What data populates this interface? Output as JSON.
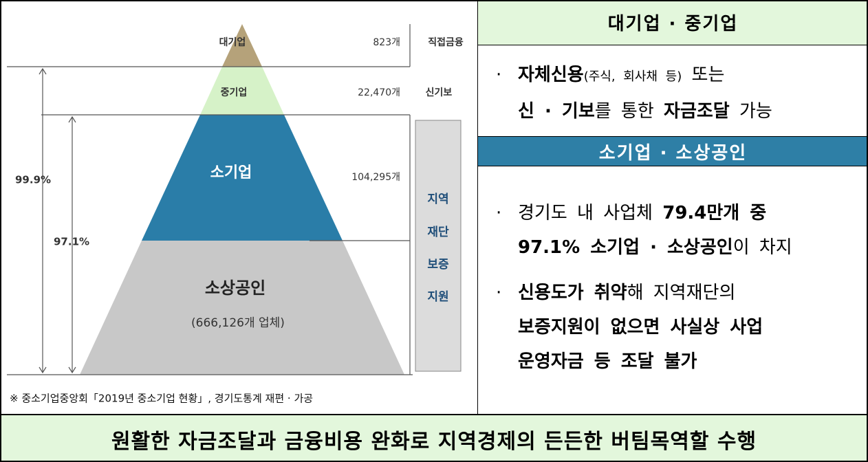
{
  "pyramid": {
    "levels": [
      {
        "label": "대기업",
        "count": "823개",
        "channel": "직접금융"
      },
      {
        "label": "중기업",
        "count": "22,470개",
        "channel": "신기보"
      },
      {
        "label": "소기업",
        "count": "104,295개"
      },
      {
        "label": "소상공인",
        "sublabel": "(666,126개 업체)"
      }
    ],
    "support": [
      "지역",
      "재단",
      "보증",
      "지원"
    ],
    "shares": [
      "99.9%",
      "97.1%"
    ],
    "source": "※ 중소기업중앙회「2019년 중소기업 현황」, 경기도통계 재편 · 가공"
  },
  "right": {
    "sections": [
      {
        "title": "대기업 · 중기업",
        "bullets": [
          {
            "marker": "·",
            "lines": [
              [
                {
                  "text": "자체신용",
                  "bold": true
                },
                {
                  "text": "(주식, 회사채 등)",
                  "small": true
                },
                {
                  "text": " 또는"
                }
              ],
              [
                {
                  "text": "신 · 기보",
                  "bold": true
                },
                {
                  "text": "를 통한 "
                },
                {
                  "text": "자금조달",
                  "bold": true
                },
                {
                  "text": " 가능"
                }
              ]
            ]
          }
        ]
      },
      {
        "title": "소기업 · 소상공인",
        "bullets": [
          {
            "marker": "·",
            "lines": [
              [
                {
                  "text": "경기도 내 사업체 "
                },
                {
                  "text": "79.4만개 중",
                  "bold": true
                }
              ],
              [
                {
                  "text": "97.1% 소기업 · 소상공인",
                  "bold": true
                },
                {
                  "text": "이 차지"
                }
              ]
            ]
          },
          {
            "marker": "·",
            "lines": [
              [
                {
                  "text": "신용도가 취약",
                  "bold": true
                },
                {
                  "text": "해 지역재단의"
                }
              ],
              [
                {
                  "text": "보증지원이 없으면 사실상 사업",
                  "bold": true
                }
              ],
              [
                {
                  "text": "운영자금 등 조달 불가",
                  "bold": true
                }
              ]
            ]
          }
        ]
      }
    ]
  },
  "footer": "원활한 자금조달과 금융비용 완화로 지역경제의 든든한 버팀목역할 수행"
}
